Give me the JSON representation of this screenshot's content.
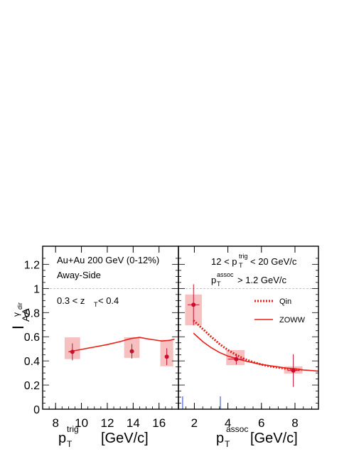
{
  "colors": {
    "data": "#c8102e",
    "band": "#f5b5b5",
    "model": "#e8201a",
    "unity": "#b0b0b0",
    "axis": "#000000",
    "tickmark": "#4a5fd0"
  },
  "chart_data": [
    {
      "type": "scatter",
      "panel": "left",
      "xlabel_main": "p",
      "xlabel_sub": "T",
      "xlabel_sup": "trig",
      "xlabel_unit": "[GeV/c]",
      "ylabel_main": "I",
      "ylabel_sub": "AA",
      "ylabel_sup": "γ",
      "ylabel_supsub": "dir",
      "xlim": [
        7,
        17.5
      ],
      "ylim": [
        0,
        1.35
      ],
      "xticks": [
        "8",
        "10",
        "12",
        "14",
        "16"
      ],
      "yticks": [
        "0",
        "0.2",
        "0.4",
        "0.6",
        "0.8",
        "1",
        "1.2"
      ],
      "annotations": [
        "Au+Au 200 GeV (0-12%)",
        "Away-Side"
      ],
      "zt_label": {
        "pre": "0.3 < z",
        "sub": "T",
        "post": " < 0.4"
      },
      "points": [
        {
          "x": 9.3,
          "y": 0.475,
          "yerr": 0.07,
          "box_x": [
            8.7,
            9.9
          ],
          "box_y": [
            0.415,
            0.595
          ]
        },
        {
          "x": 13.9,
          "y": 0.48,
          "yerr": 0.06,
          "box_x": [
            13.3,
            14.5
          ],
          "box_y": [
            0.425,
            0.595
          ]
        },
        {
          "x": 16.6,
          "y": 0.435,
          "yerr": 0.07,
          "box_x": [
            16.1,
            17.1
          ],
          "box_y": [
            0.355,
            0.575
          ]
        }
      ],
      "curves": [
        {
          "x": [
            9.0,
            10.0,
            11.0,
            12.0,
            13.0,
            13.8,
            14.5,
            15.0,
            15.6,
            16.2,
            16.8,
            17.2
          ],
          "y": [
            0.475,
            0.495,
            0.515,
            0.535,
            0.56,
            0.585,
            0.595,
            0.585,
            0.575,
            0.565,
            0.57,
            0.58
          ],
          "style": "solid"
        }
      ]
    },
    {
      "type": "scatter",
      "panel": "right",
      "xlabel_main": "p",
      "xlabel_sub": "T",
      "xlabel_sup": "assoc",
      "xlabel_unit": "[GeV/c]",
      "xlim": [
        1.05,
        9.4
      ],
      "ylim": [
        0,
        1.35
      ],
      "xticks": [
        "2",
        "4",
        "6",
        "8"
      ],
      "trig_label": {
        "pre": "12 < p",
        "sub": "T",
        "sup": "trig",
        "post": " < 20 GeV/c"
      },
      "assoc_label": {
        "pre": "p",
        "sub": "T",
        "sup": "assoc",
        "post": " > 1.2 GeV/c"
      },
      "legend": [
        {
          "label": "Qin",
          "style": "dotted"
        },
        {
          "label": "ZOWW",
          "style": "solid"
        }
      ],
      "points": [
        {
          "x": 1.95,
          "y": 0.865,
          "yerr": 0.17,
          "xerr": 0.35,
          "box_x": [
            1.45,
            2.45
          ],
          "box_y": [
            0.695,
            0.95
          ]
        },
        {
          "x": 4.5,
          "y": 0.415,
          "yerr": 0.045,
          "xerr": 0.5,
          "box_x": [
            3.9,
            5.0
          ],
          "box_y": [
            0.365,
            0.49
          ]
        },
        {
          "x": 7.9,
          "y": 0.32,
          "yerr": 0.135,
          "xerr": 0.35,
          "box_x": [
            7.35,
            8.45
          ],
          "box_y": [
            0.295,
            0.355
          ]
        }
      ],
      "curves": [
        {
          "name": "Qin",
          "style": "dotted",
          "x": [
            1.95,
            2.5,
            3.0,
            3.5,
            4.0,
            4.5,
            5.0,
            5.5,
            6.0,
            6.5,
            7.0,
            7.5,
            8.0,
            8.4
          ],
          "y": [
            0.735,
            0.665,
            0.6,
            0.54,
            0.49,
            0.45,
            0.415,
            0.39,
            0.37,
            0.355,
            0.345,
            0.335,
            0.33,
            0.325
          ]
        },
        {
          "name": "ZOWW",
          "style": "solid",
          "x": [
            1.95,
            2.5,
            3.0,
            3.5,
            4.0,
            4.5,
            5.0,
            5.5,
            6.0,
            6.5,
            7.0,
            7.5,
            8.0,
            8.5,
            9.0,
            9.4
          ],
          "y": [
            0.63,
            0.56,
            0.51,
            0.47,
            0.44,
            0.42,
            0.4,
            0.385,
            0.37,
            0.36,
            0.35,
            0.34,
            0.335,
            0.325,
            0.32,
            0.315
          ]
        }
      ],
      "blue_ticks_x": [
        1.3,
        3.55
      ]
    }
  ]
}
